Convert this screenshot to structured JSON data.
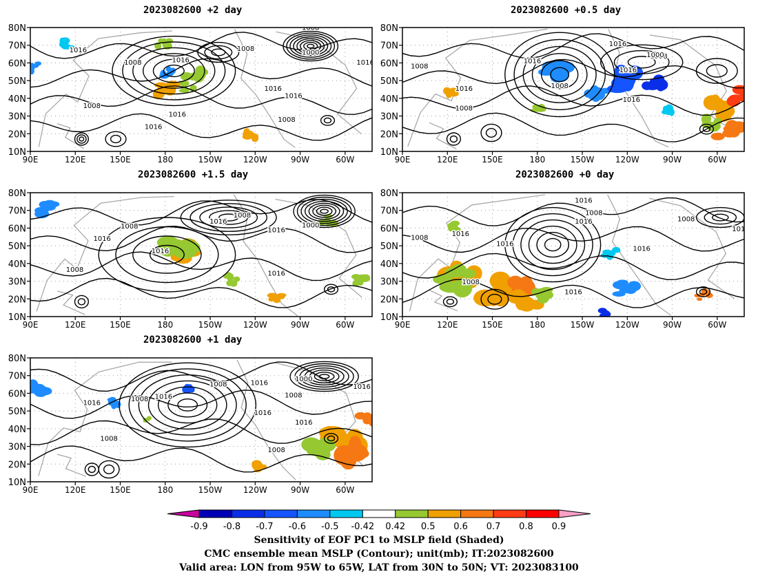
{
  "map": {
    "lon_labels": [
      "90E",
      "120E",
      "150E",
      "180",
      "150W",
      "120W",
      "90W",
      "60W"
    ],
    "lat_labels": [
      "80N",
      "70N",
      "60N",
      "50N",
      "40N",
      "30N",
      "20N",
      "10N"
    ],
    "contour_labels": [
      "1000",
      "1008",
      "1016"
    ],
    "panels": [
      {
        "id": "p2",
        "title": "2023082600  +2 day"
      },
      {
        "id": "p05",
        "title": "2023082600  +0.5 day"
      },
      {
        "id": "p15",
        "title": "2023082600  +1.5 day"
      },
      {
        "id": "p0",
        "title": "2023082600  +0 day"
      },
      {
        "id": "p1",
        "title": "2023082600  +1 day"
      }
    ]
  },
  "colorbar": {
    "tick_labels": [
      "-0.9",
      "-0.8",
      "-0.7",
      "-0.6",
      "-0.5",
      "-0.42",
      "0.42",
      "0.5",
      "0.6",
      "0.7",
      "0.8",
      "0.9"
    ],
    "colors": [
      "#0000b4",
      "#0a2ee8",
      "#1455ff",
      "#1e8cff",
      "#00c8f0",
      "#ffffff",
      "#96c832",
      "#f0a000",
      "#f57814",
      "#ff3c14",
      "#ff0000"
    ],
    "low_color": "#c800a0",
    "high_color": "#f8a0c8"
  },
  "caption": {
    "line1": "Sensitivity of EOF PC1 to MSLP field (Shaded)",
    "line2": "CMC ensemble mean MSLP (Contour); unit(mb); IT:2023082600",
    "line3": "Valid area: LON from 95W to 65W, LAT from 30N to 50N; VT: 2023083100"
  }
}
